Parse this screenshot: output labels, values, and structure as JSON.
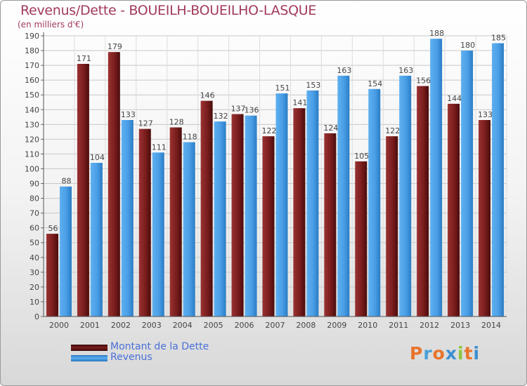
{
  "title": "Revenus/Dette - BOUEILH-BOUEILHO-LASQUE",
  "subtitle": "(en milliers d'€)",
  "logo_text": "Proxiti",
  "colors": {
    "dette": "#7a1d1d",
    "revenus": "#4a9ee6",
    "title": "#a13a5a",
    "legend_text": "#4a6fd8"
  },
  "legend": [
    {
      "label": "Montant de la Dette",
      "color": "#7a1d1d"
    },
    {
      "label": "Revenus",
      "color": "#4a9ee6"
    }
  ],
  "chart_data": {
    "type": "bar",
    "title": "Revenus/Dette - BOUEILH-BOUEILHO-LASQUE",
    "subtitle": "(en milliers d'€)",
    "xlabel": "",
    "ylabel": "",
    "ylim": [
      0,
      190
    ],
    "ytick_step": 10,
    "grid": true,
    "legend_position": "bottom-left",
    "categories": [
      "2000",
      "2001",
      "2002",
      "2003",
      "2004",
      "2005",
      "2006",
      "2007",
      "2008",
      "2009",
      "2010",
      "2011",
      "2012",
      "2013",
      "2014"
    ],
    "series": [
      {
        "name": "Montant de la Dette",
        "color": "#7a1d1d",
        "values": [
          56,
          171,
          179,
          127,
          128,
          146,
          137,
          122,
          141,
          124,
          105,
          122,
          156,
          144,
          133
        ]
      },
      {
        "name": "Revenus",
        "color": "#4a9ee6",
        "values": [
          88,
          104,
          133,
          111,
          118,
          132,
          136,
          151,
          153,
          163,
          154,
          163,
          188,
          180,
          185
        ]
      }
    ]
  }
}
